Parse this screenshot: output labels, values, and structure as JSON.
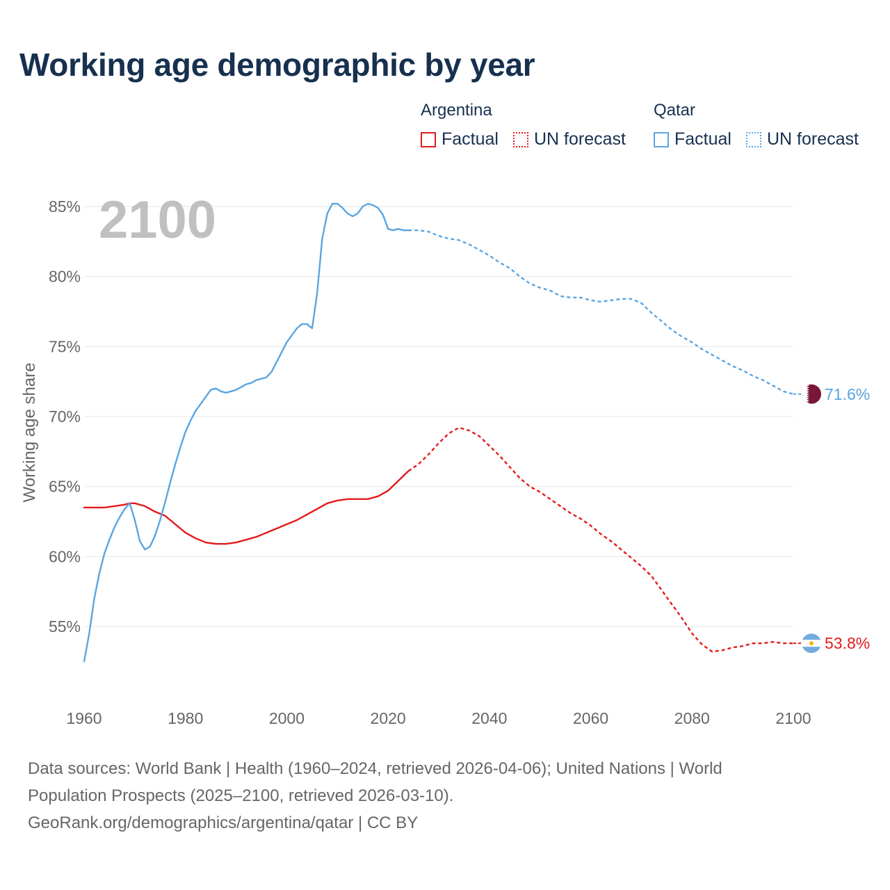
{
  "title": "Working age demographic by year",
  "legend": {
    "groups": [
      {
        "name": "Argentina",
        "factual_label": "Factual",
        "forecast_label": "UN forecast",
        "color": "#e41a1c"
      },
      {
        "name": "Qatar",
        "factual_label": "Factual",
        "forecast_label": "UN forecast",
        "color": "#5aa5e0"
      }
    ]
  },
  "year_label": "2100",
  "footer": {
    "line1": "Data sources: World Bank | Health (1960–2024, retrieved 2026-04-06); United Nations | World",
    "line2": "Population Prospects (2025–2100, retrieved 2026-03-10).",
    "line3": "GeoRank.org/demographics/argentina/qatar | CC BY"
  },
  "chart_data": {
    "type": "line",
    "title": "Working age demographic by year",
    "xlabel": "",
    "ylabel": "Working age share",
    "xlim": [
      1960,
      2103
    ],
    "ylim": [
      50.5,
      86.5
    ],
    "x_ticks": [
      1960,
      1980,
      2000,
      2020,
      2040,
      2060,
      2080,
      2100
    ],
    "x_tick_labels": [
      "1960",
      "1980",
      "2000",
      "2020",
      "2040",
      "2060",
      "2080",
      "2100"
    ],
    "y_ticks": [
      55,
      60,
      65,
      70,
      75,
      80,
      85
    ],
    "y_tick_labels": [
      "55%",
      "60%",
      "65%",
      "70%",
      "75%",
      "80%",
      "85%"
    ],
    "grid": true,
    "series": [
      {
        "name": "Argentina",
        "segment": "Factual",
        "color": "#e41a1c",
        "style": "solid",
        "points": [
          [
            1960,
            63.5
          ],
          [
            1962,
            63.5
          ],
          [
            1964,
            63.5
          ],
          [
            1966,
            63.6
          ],
          [
            1968,
            63.7
          ],
          [
            1969,
            63.8
          ],
          [
            1970,
            63.8
          ],
          [
            1972,
            63.6
          ],
          [
            1974,
            63.2
          ],
          [
            1976,
            62.9
          ],
          [
            1978,
            62.3
          ],
          [
            1980,
            61.7
          ],
          [
            1982,
            61.3
          ],
          [
            1984,
            61.0
          ],
          [
            1986,
            60.9
          ],
          [
            1988,
            60.9
          ],
          [
            1990,
            61.0
          ],
          [
            1992,
            61.2
          ],
          [
            1994,
            61.4
          ],
          [
            1996,
            61.7
          ],
          [
            1998,
            62.0
          ],
          [
            2000,
            62.3
          ],
          [
            2002,
            62.6
          ],
          [
            2004,
            63.0
          ],
          [
            2006,
            63.4
          ],
          [
            2008,
            63.8
          ],
          [
            2010,
            64.0
          ],
          [
            2012,
            64.1
          ],
          [
            2014,
            64.1
          ],
          [
            2016,
            64.1
          ],
          [
            2018,
            64.3
          ],
          [
            2020,
            64.7
          ],
          [
            2022,
            65.4
          ],
          [
            2024,
            66.1
          ]
        ]
      },
      {
        "name": "Argentina",
        "segment": "UN forecast",
        "color": "#e41a1c",
        "style": "dotted",
        "points": [
          [
            2024,
            66.1
          ],
          [
            2026,
            66.6
          ],
          [
            2028,
            67.3
          ],
          [
            2030,
            68.1
          ],
          [
            2032,
            68.8
          ],
          [
            2034,
            69.2
          ],
          [
            2036,
            69.0
          ],
          [
            2038,
            68.6
          ],
          [
            2040,
            67.9
          ],
          [
            2042,
            67.2
          ],
          [
            2044,
            66.4
          ],
          [
            2046,
            65.6
          ],
          [
            2048,
            65.0
          ],
          [
            2050,
            64.6
          ],
          [
            2052,
            64.1
          ],
          [
            2054,
            63.6
          ],
          [
            2056,
            63.1
          ],
          [
            2058,
            62.7
          ],
          [
            2060,
            62.2
          ],
          [
            2062,
            61.6
          ],
          [
            2064,
            61.1
          ],
          [
            2066,
            60.5
          ],
          [
            2068,
            59.9
          ],
          [
            2070,
            59.3
          ],
          [
            2072,
            58.6
          ],
          [
            2074,
            57.6
          ],
          [
            2076,
            56.6
          ],
          [
            2078,
            55.6
          ],
          [
            2080,
            54.5
          ],
          [
            2082,
            53.7
          ],
          [
            2084,
            53.2
          ],
          [
            2086,
            53.3
          ],
          [
            2088,
            53.5
          ],
          [
            2090,
            53.6
          ],
          [
            2092,
            53.8
          ],
          [
            2094,
            53.8
          ],
          [
            2096,
            53.9
          ],
          [
            2098,
            53.8
          ],
          [
            2100,
            53.8
          ]
        ]
      },
      {
        "name": "Qatar",
        "segment": "Factual",
        "color": "#5aa5e0",
        "style": "solid",
        "points": [
          [
            1960,
            52.5
          ],
          [
            1961,
            54.5
          ],
          [
            1962,
            57.0
          ],
          [
            1963,
            58.8
          ],
          [
            1964,
            60.2
          ],
          [
            1965,
            61.2
          ],
          [
            1966,
            62.1
          ],
          [
            1967,
            62.8
          ],
          [
            1968,
            63.4
          ],
          [
            1969,
            63.8
          ],
          [
            1970,
            62.6
          ],
          [
            1971,
            61.1
          ],
          [
            1972,
            60.5
          ],
          [
            1973,
            60.7
          ],
          [
            1974,
            61.5
          ],
          [
            1975,
            62.6
          ],
          [
            1976,
            63.9
          ],
          [
            1977,
            65.3
          ],
          [
            1978,
            66.6
          ],
          [
            1979,
            67.8
          ],
          [
            1980,
            68.9
          ],
          [
            1981,
            69.7
          ],
          [
            1982,
            70.4
          ],
          [
            1983,
            70.9
          ],
          [
            1984,
            71.4
          ],
          [
            1985,
            71.9
          ],
          [
            1986,
            72.0
          ],
          [
            1987,
            71.8
          ],
          [
            1988,
            71.7
          ],
          [
            1989,
            71.8
          ],
          [
            1990,
            71.9
          ],
          [
            1991,
            72.1
          ],
          [
            1992,
            72.3
          ],
          [
            1993,
            72.4
          ],
          [
            1994,
            72.6
          ],
          [
            1995,
            72.7
          ],
          [
            1996,
            72.8
          ],
          [
            1997,
            73.2
          ],
          [
            1998,
            73.9
          ],
          [
            1999,
            74.6
          ],
          [
            2000,
            75.3
          ],
          [
            2001,
            75.8
          ],
          [
            2002,
            76.3
          ],
          [
            2003,
            76.6
          ],
          [
            2004,
            76.6
          ],
          [
            2005,
            76.3
          ],
          [
            2006,
            78.8
          ],
          [
            2007,
            82.7
          ],
          [
            2008,
            84.5
          ],
          [
            2009,
            85.2
          ],
          [
            2010,
            85.2
          ],
          [
            2011,
            84.9
          ],
          [
            2012,
            84.5
          ],
          [
            2013,
            84.3
          ],
          [
            2014,
            84.5
          ],
          [
            2015,
            85.0
          ],
          [
            2016,
            85.2
          ],
          [
            2017,
            85.1
          ],
          [
            2018,
            84.9
          ],
          [
            2019,
            84.4
          ],
          [
            2020,
            83.4
          ],
          [
            2021,
            83.3
          ],
          [
            2022,
            83.4
          ],
          [
            2023,
            83.3
          ],
          [
            2024,
            83.3
          ]
        ]
      },
      {
        "name": "Qatar",
        "segment": "UN forecast",
        "color": "#5aa5e0",
        "style": "dotted",
        "points": [
          [
            2024,
            83.3
          ],
          [
            2026,
            83.3
          ],
          [
            2028,
            83.2
          ],
          [
            2030,
            82.9
          ],
          [
            2032,
            82.7
          ],
          [
            2034,
            82.6
          ],
          [
            2036,
            82.3
          ],
          [
            2038,
            81.9
          ],
          [
            2040,
            81.5
          ],
          [
            2042,
            81.0
          ],
          [
            2044,
            80.6
          ],
          [
            2046,
            80.0
          ],
          [
            2048,
            79.5
          ],
          [
            2050,
            79.2
          ],
          [
            2052,
            79.0
          ],
          [
            2054,
            78.6
          ],
          [
            2056,
            78.5
          ],
          [
            2058,
            78.5
          ],
          [
            2060,
            78.3
          ],
          [
            2062,
            78.2
          ],
          [
            2064,
            78.3
          ],
          [
            2066,
            78.4
          ],
          [
            2068,
            78.4
          ],
          [
            2070,
            78.1
          ],
          [
            2072,
            77.4
          ],
          [
            2074,
            76.8
          ],
          [
            2076,
            76.2
          ],
          [
            2078,
            75.7
          ],
          [
            2080,
            75.3
          ],
          [
            2082,
            74.8
          ],
          [
            2084,
            74.4
          ],
          [
            2086,
            74.0
          ],
          [
            2088,
            73.6
          ],
          [
            2090,
            73.3
          ],
          [
            2092,
            72.9
          ],
          [
            2094,
            72.6
          ],
          [
            2096,
            72.2
          ],
          [
            2098,
            71.8
          ],
          [
            2100,
            71.6
          ]
        ]
      }
    ],
    "end_labels": [
      {
        "name": "Qatar",
        "value": 71.6,
        "text": "71.6%",
        "color": "#5aa5e0"
      },
      {
        "name": "Argentina",
        "value": 53.8,
        "text": "53.8%",
        "color": "#e41a1c"
      }
    ]
  }
}
